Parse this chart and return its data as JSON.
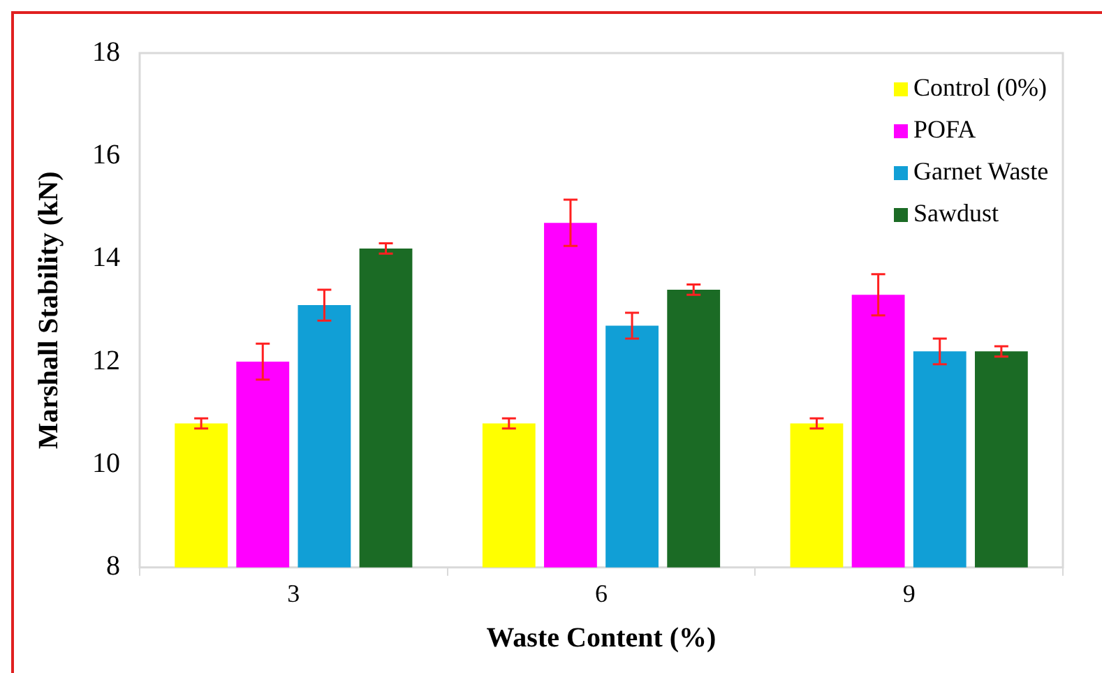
{
  "chart_data": {
    "type": "bar",
    "xlabel": "Waste Content (%)",
    "ylabel": "Marshall Stability (kN)",
    "categories": [
      "3",
      "6",
      "9"
    ],
    "series": [
      {
        "name": "Control (0%)",
        "color": "#ffff00",
        "values": [
          10.8,
          10.8,
          10.8
        ],
        "errors": [
          0.1,
          0.1,
          0.1
        ]
      },
      {
        "name": "POFA",
        "color": "#ff00ff",
        "values": [
          12.0,
          14.7,
          13.3
        ],
        "errors": [
          0.35,
          0.45,
          0.4
        ]
      },
      {
        "name": "Garnet Waste",
        "color": "#119fd6",
        "values": [
          13.1,
          12.7,
          12.2
        ],
        "errors": [
          0.3,
          0.25,
          0.25
        ]
      },
      {
        "name": "Sawdust",
        "color": "#1b6b25",
        "values": [
          14.2,
          13.4,
          12.2
        ],
        "errors": [
          0.1,
          0.1,
          0.1
        ]
      }
    ],
    "ylim": [
      8,
      18
    ],
    "yticks": [
      8,
      10,
      12,
      14,
      16,
      18
    ],
    "grid": false,
    "legend": "top right"
  }
}
